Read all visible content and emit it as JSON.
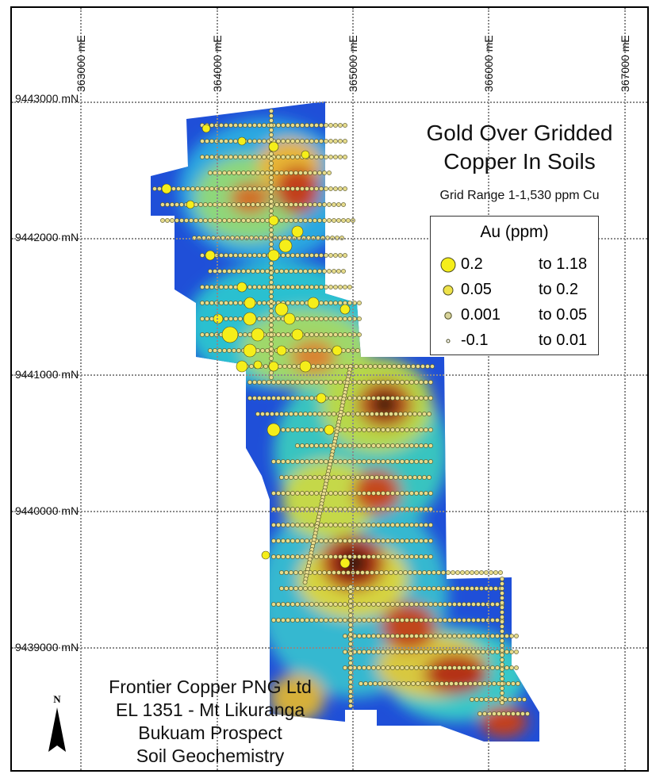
{
  "map": {
    "title_line1": "Gold Over Gridded",
    "title_line2": "Copper In Soils",
    "subtitle": "Grid Range 1-1,530 ppm Cu",
    "easting_labels": [
      "363000 mE",
      "364000 mE",
      "365000 mE",
      "366000 mE",
      "367000 mE"
    ],
    "northing_labels": [
      "9443000 mN",
      "9442000 mN",
      "9441000 mN",
      "9440000 mN",
      "9439000 mN"
    ],
    "north_arrow_label": "N",
    "colors": {
      "sample_fill": "#e7dc8c",
      "high_au": "#f5ee1a",
      "symbol_stroke": "#4a4a20"
    }
  },
  "legend": {
    "title": "Au (ppm)",
    "items": [
      {
        "from": "0.2",
        "to": "to 1.18",
        "symbol": "large-yellow-circle"
      },
      {
        "from": "0.05",
        "to": "to 0.2",
        "symbol": "medium-yellow-circle"
      },
      {
        "from": "0.001",
        "to": "to 0.05",
        "symbol": "small-tan-circle"
      },
      {
        "from": "-0.1",
        "to": "to 0.01",
        "symbol": "tiny-white-circle"
      }
    ]
  },
  "info": {
    "line1": "Frontier Copper PNG Ltd",
    "line2": "EL 1351 - Mt Likuranga",
    "line3": "Bukuam Prospect",
    "line4": "Soil Geochemistry"
  }
}
